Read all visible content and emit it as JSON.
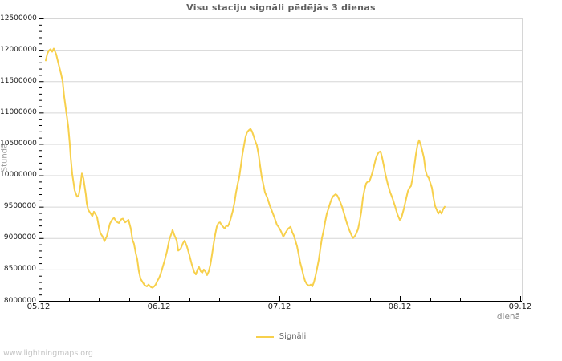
{
  "page": {
    "watermark": "www.lightningmaps.org"
  },
  "colors": {
    "line": "#f7d04c",
    "grid": "#d6d6d6",
    "axis": "#000000",
    "title_text": "#606060",
    "tick_text": "#1a1a1a",
    "axis_label_text": "#9a9a9a",
    "watermark_text": "#c4c4c4"
  },
  "chart": {
    "title": "Visu staciju signāli pēdējās 3 dienas",
    "y_axis": {
      "label": "Stundā",
      "tick_labels": [
        "8000000",
        "8500000",
        "9000000",
        "9500000",
        "10000000",
        "10500000",
        "11000000",
        "11500000",
        "12000000",
        "12500000"
      ]
    },
    "x_axis": {
      "label": "dienā",
      "tick_labels": [
        "05.12",
        "06.12",
        "07.12",
        "08.12",
        "09.12"
      ]
    },
    "legend": [
      {
        "label": "Signāli",
        "color": "#f7d04c"
      }
    ]
  },
  "chart_data": {
    "type": "line",
    "title": "Visu staciju signāli pēdējās 3 dienas",
    "xlabel": "dienā",
    "ylabel": "Stundā",
    "ylim": [
      8000000,
      12500000
    ],
    "xlim_days": [
      0,
      4
    ],
    "x_tick_labels": [
      "05.12",
      "06.12",
      "07.12",
      "08.12",
      "09.12"
    ],
    "grid": "horizontal-only",
    "legend_position": "bottom-center",
    "series": [
      {
        "name": "Signāli",
        "color": "#f7d04c",
        "points": [
          [
            0.06,
            11830000
          ],
          [
            0.073,
            11940000
          ],
          [
            0.087,
            11990000
          ],
          [
            0.1,
            12010000
          ],
          [
            0.113,
            11970000
          ],
          [
            0.127,
            12020000
          ],
          [
            0.147,
            11930000
          ],
          [
            0.167,
            11770000
          ],
          [
            0.187,
            11620000
          ],
          [
            0.2,
            11500000
          ],
          [
            0.213,
            11250000
          ],
          [
            0.233,
            10970000
          ],
          [
            0.247,
            10780000
          ],
          [
            0.26,
            10490000
          ],
          [
            0.267,
            10280000
          ],
          [
            0.28,
            10020000
          ],
          [
            0.293,
            9860000
          ],
          [
            0.3,
            9760000
          ],
          [
            0.32,
            9660000
          ],
          [
            0.333,
            9680000
          ],
          [
            0.347,
            9820000
          ],
          [
            0.36,
            10030000
          ],
          [
            0.373,
            9950000
          ],
          [
            0.38,
            9860000
          ],
          [
            0.393,
            9690000
          ],
          [
            0.4,
            9560000
          ],
          [
            0.413,
            9450000
          ],
          [
            0.433,
            9390000
          ],
          [
            0.447,
            9350000
          ],
          [
            0.46,
            9420000
          ],
          [
            0.473,
            9380000
          ],
          [
            0.487,
            9330000
          ],
          [
            0.5,
            9190000
          ],
          [
            0.513,
            9080000
          ],
          [
            0.533,
            9020000
          ],
          [
            0.547,
            8950000
          ],
          [
            0.567,
            9030000
          ],
          [
            0.593,
            9230000
          ],
          [
            0.613,
            9300000
          ],
          [
            0.627,
            9320000
          ],
          [
            0.647,
            9260000
          ],
          [
            0.667,
            9240000
          ],
          [
            0.687,
            9300000
          ],
          [
            0.7,
            9310000
          ],
          [
            0.72,
            9250000
          ],
          [
            0.733,
            9270000
          ],
          [
            0.747,
            9290000
          ],
          [
            0.767,
            9140000
          ],
          [
            0.78,
            8970000
          ],
          [
            0.793,
            8910000
          ],
          [
            0.807,
            8760000
          ],
          [
            0.82,
            8660000
          ],
          [
            0.833,
            8480000
          ],
          [
            0.847,
            8350000
          ],
          [
            0.867,
            8290000
          ],
          [
            0.88,
            8250000
          ],
          [
            0.9,
            8230000
          ],
          [
            0.913,
            8260000
          ],
          [
            0.933,
            8220000
          ],
          [
            0.947,
            8210000
          ],
          [
            0.96,
            8230000
          ],
          [
            0.973,
            8260000
          ],
          [
            0.987,
            8320000
          ],
          [
            1.0,
            8360000
          ],
          [
            1.013,
            8420000
          ],
          [
            1.027,
            8510000
          ],
          [
            1.047,
            8640000
          ],
          [
            1.067,
            8790000
          ],
          [
            1.087,
            8980000
          ],
          [
            1.107,
            9090000
          ],
          [
            1.113,
            9130000
          ],
          [
            1.127,
            9050000
          ],
          [
            1.147,
            8960000
          ],
          [
            1.16,
            8800000
          ],
          [
            1.18,
            8830000
          ],
          [
            1.2,
            8920000
          ],
          [
            1.213,
            8960000
          ],
          [
            1.233,
            8860000
          ],
          [
            1.253,
            8730000
          ],
          [
            1.273,
            8580000
          ],
          [
            1.293,
            8460000
          ],
          [
            1.307,
            8420000
          ],
          [
            1.32,
            8500000
          ],
          [
            1.333,
            8540000
          ],
          [
            1.347,
            8470000
          ],
          [
            1.36,
            8450000
          ],
          [
            1.373,
            8500000
          ],
          [
            1.387,
            8460000
          ],
          [
            1.4,
            8410000
          ],
          [
            1.413,
            8470000
          ],
          [
            1.427,
            8580000
          ],
          [
            1.44,
            8730000
          ],
          [
            1.453,
            8900000
          ],
          [
            1.467,
            9060000
          ],
          [
            1.48,
            9180000
          ],
          [
            1.493,
            9240000
          ],
          [
            1.507,
            9250000
          ],
          [
            1.52,
            9210000
          ],
          [
            1.533,
            9180000
          ],
          [
            1.547,
            9150000
          ],
          [
            1.56,
            9200000
          ],
          [
            1.573,
            9190000
          ],
          [
            1.587,
            9250000
          ],
          [
            1.6,
            9340000
          ],
          [
            1.613,
            9430000
          ],
          [
            1.627,
            9570000
          ],
          [
            1.64,
            9730000
          ],
          [
            1.653,
            9860000
          ],
          [
            1.667,
            9980000
          ],
          [
            1.68,
            10150000
          ],
          [
            1.693,
            10340000
          ],
          [
            1.707,
            10490000
          ],
          [
            1.72,
            10620000
          ],
          [
            1.733,
            10690000
          ],
          [
            1.747,
            10720000
          ],
          [
            1.76,
            10740000
          ],
          [
            1.773,
            10700000
          ],
          [
            1.787,
            10620000
          ],
          [
            1.8,
            10540000
          ],
          [
            1.813,
            10480000
          ],
          [
            1.827,
            10330000
          ],
          [
            1.84,
            10150000
          ],
          [
            1.853,
            9980000
          ],
          [
            1.867,
            9850000
          ],
          [
            1.88,
            9730000
          ],
          [
            1.9,
            9640000
          ],
          [
            1.92,
            9520000
          ],
          [
            1.94,
            9420000
          ],
          [
            1.96,
            9320000
          ],
          [
            1.98,
            9210000
          ],
          [
            1.993,
            9180000
          ],
          [
            2.013,
            9110000
          ],
          [
            2.033,
            9020000
          ],
          [
            2.053,
            9090000
          ],
          [
            2.073,
            9150000
          ],
          [
            2.093,
            9180000
          ],
          [
            2.107,
            9090000
          ],
          [
            2.12,
            9040000
          ],
          [
            2.133,
            8960000
          ],
          [
            2.147,
            8870000
          ],
          [
            2.16,
            8740000
          ],
          [
            2.173,
            8610000
          ],
          [
            2.187,
            8510000
          ],
          [
            2.2,
            8400000
          ],
          [
            2.213,
            8320000
          ],
          [
            2.227,
            8270000
          ],
          [
            2.247,
            8240000
          ],
          [
            2.26,
            8260000
          ],
          [
            2.273,
            8230000
          ],
          [
            2.287,
            8300000
          ],
          [
            2.3,
            8400000
          ],
          [
            2.313,
            8520000
          ],
          [
            2.327,
            8660000
          ],
          [
            2.34,
            8830000
          ],
          [
            2.353,
            9000000
          ],
          [
            2.367,
            9120000
          ],
          [
            2.38,
            9260000
          ],
          [
            2.393,
            9380000
          ],
          [
            2.407,
            9470000
          ],
          [
            2.42,
            9550000
          ],
          [
            2.433,
            9620000
          ],
          [
            2.447,
            9670000
          ],
          [
            2.467,
            9700000
          ],
          [
            2.48,
            9680000
          ],
          [
            2.5,
            9600000
          ],
          [
            2.52,
            9500000
          ],
          [
            2.54,
            9370000
          ],
          [
            2.56,
            9240000
          ],
          [
            2.58,
            9130000
          ],
          [
            2.6,
            9040000
          ],
          [
            2.613,
            9000000
          ],
          [
            2.633,
            9050000
          ],
          [
            2.653,
            9140000
          ],
          [
            2.667,
            9270000
          ],
          [
            2.68,
            9420000
          ],
          [
            2.693,
            9630000
          ],
          [
            2.707,
            9770000
          ],
          [
            2.72,
            9870000
          ],
          [
            2.733,
            9900000
          ],
          [
            2.747,
            9900000
          ],
          [
            2.76,
            9970000
          ],
          [
            2.773,
            10050000
          ],
          [
            2.787,
            10160000
          ],
          [
            2.8,
            10260000
          ],
          [
            2.813,
            10330000
          ],
          [
            2.827,
            10370000
          ],
          [
            2.84,
            10380000
          ],
          [
            2.853,
            10280000
          ],
          [
            2.867,
            10150000
          ],
          [
            2.88,
            10020000
          ],
          [
            2.9,
            9860000
          ],
          [
            2.92,
            9730000
          ],
          [
            2.94,
            9630000
          ],
          [
            2.96,
            9510000
          ],
          [
            2.98,
            9380000
          ],
          [
            3.0,
            9290000
          ],
          [
            3.013,
            9320000
          ],
          [
            3.033,
            9460000
          ],
          [
            3.053,
            9630000
          ],
          [
            3.067,
            9750000
          ],
          [
            3.08,
            9800000
          ],
          [
            3.093,
            9830000
          ],
          [
            3.107,
            9960000
          ],
          [
            3.12,
            10140000
          ],
          [
            3.133,
            10330000
          ],
          [
            3.147,
            10480000
          ],
          [
            3.16,
            10560000
          ],
          [
            3.173,
            10490000
          ],
          [
            3.187,
            10390000
          ],
          [
            3.2,
            10280000
          ],
          [
            3.213,
            10080000
          ],
          [
            3.227,
            9990000
          ],
          [
            3.24,
            9960000
          ],
          [
            3.253,
            9880000
          ],
          [
            3.267,
            9800000
          ],
          [
            3.28,
            9640000
          ],
          [
            3.293,
            9510000
          ],
          [
            3.307,
            9450000
          ],
          [
            3.32,
            9390000
          ],
          [
            3.333,
            9430000
          ],
          [
            3.347,
            9390000
          ],
          [
            3.36,
            9460000
          ],
          [
            3.373,
            9500000
          ]
        ]
      }
    ]
  }
}
